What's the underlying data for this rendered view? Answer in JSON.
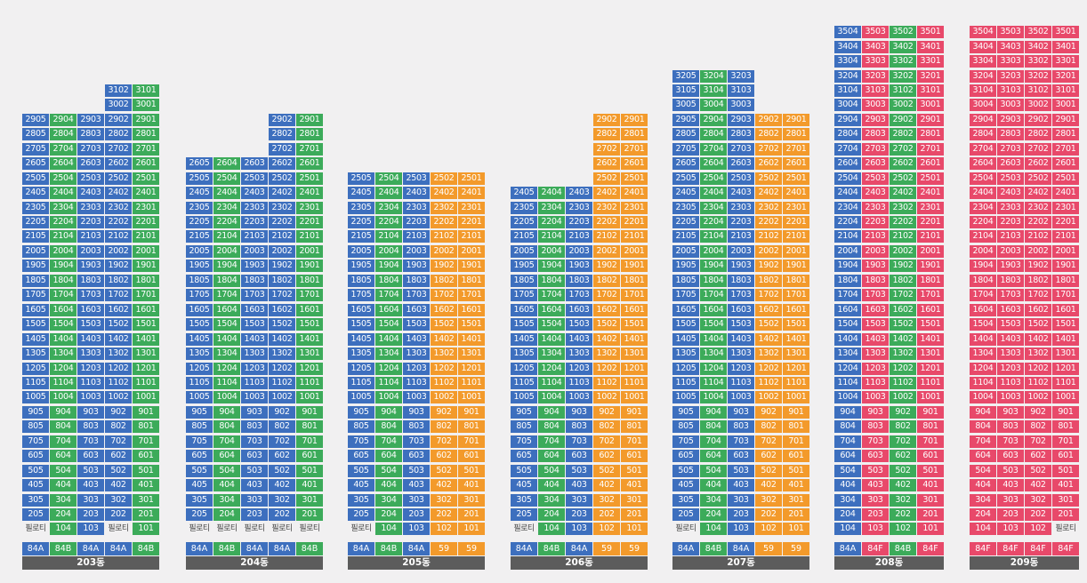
{
  "piloti_label": "필로티",
  "colors": {
    "blue": "#3d6fbe",
    "green": "#3cab5a",
    "orange": "#f39a2b",
    "pink": "#e8496a",
    "label_bar": "#5c5c5c",
    "background": "#f1f0f1"
  },
  "buildings": [
    {
      "label": "203동",
      "top": 31,
      "floors_by_column": [
        29,
        29,
        29,
        31,
        31
      ],
      "colors": [
        "b",
        "g",
        "b",
        "b",
        "g"
      ],
      "ground": [
        [
          "piloti"
        ],
        [
          "104",
          "g"
        ],
        [
          "103",
          "b"
        ],
        [
          "piloti"
        ],
        [
          "101",
          "g"
        ]
      ],
      "types": [
        [
          "84A",
          "b"
        ],
        [
          "84B",
          "g"
        ],
        [
          "84A",
          "b"
        ],
        [
          "84A",
          "b"
        ],
        [
          "84B",
          "g"
        ]
      ]
    },
    {
      "label": "204동",
      "top": 29,
      "floors_by_column": [
        26,
        26,
        26,
        29,
        29
      ],
      "colors": [
        "b",
        "g",
        "b",
        "b",
        "g"
      ],
      "ground": [
        [
          "piloti"
        ],
        [
          "piloti"
        ],
        [
          "piloti"
        ],
        [
          "piloti"
        ],
        [
          "piloti"
        ]
      ],
      "types": [
        [
          "84A",
          "b"
        ],
        [
          "84B",
          "g"
        ],
        [
          "84A",
          "b"
        ],
        [
          "84A",
          "b"
        ],
        [
          "84B",
          "g"
        ]
      ]
    },
    {
      "label": "205동",
      "top": 25,
      "floors_by_column": [
        25,
        25,
        25,
        25,
        25
      ],
      "colors": [
        "b",
        "g",
        "b",
        "o",
        "o"
      ],
      "ground": [
        [
          "piloti"
        ],
        [
          "104",
          "g"
        ],
        [
          "103",
          "b"
        ],
        [
          "102",
          "o"
        ],
        [
          "101",
          "o"
        ]
      ],
      "types": [
        [
          "84A",
          "b"
        ],
        [
          "84B",
          "g"
        ],
        [
          "84A",
          "b"
        ],
        [
          "59",
          "o"
        ],
        [
          "59",
          "o"
        ]
      ]
    },
    {
      "label": "206동",
      "top": 29,
      "floors_by_column": [
        24,
        24,
        24,
        29,
        29
      ],
      "colors": [
        "b",
        "g",
        "b",
        "o",
        "o"
      ],
      "ground": [
        [
          "piloti"
        ],
        [
          "104",
          "g"
        ],
        [
          "103",
          "b"
        ],
        [
          "102",
          "o"
        ],
        [
          "101",
          "o"
        ]
      ],
      "types": [
        [
          "84A",
          "b"
        ],
        [
          "84B",
          "g"
        ],
        [
          "84A",
          "b"
        ],
        [
          "59",
          "o"
        ],
        [
          "59",
          "o"
        ]
      ]
    },
    {
      "label": "207동",
      "top": 32,
      "floors_by_column": [
        32,
        32,
        32,
        29,
        29
      ],
      "colors": [
        "b",
        "g",
        "b",
        "o",
        "o"
      ],
      "ground": [
        [
          "piloti"
        ],
        [
          "104",
          "g"
        ],
        [
          "103",
          "b"
        ],
        [
          "102",
          "o"
        ],
        [
          "101",
          "o"
        ]
      ],
      "types": [
        [
          "84A",
          "b"
        ],
        [
          "84B",
          "g"
        ],
        [
          "84A",
          "b"
        ],
        [
          "59",
          "o"
        ],
        [
          "59",
          "o"
        ]
      ]
    },
    {
      "label": "208동",
      "top": 35,
      "floors_by_column": [
        35,
        35,
        35,
        35
      ],
      "colors": [
        "b",
        "p",
        "g",
        "p"
      ],
      "ground": [
        [
          "104",
          "b"
        ],
        [
          "103",
          "p"
        ],
        [
          "102",
          "g"
        ],
        [
          "101",
          "p"
        ]
      ],
      "types": [
        [
          "84A",
          "b"
        ],
        [
          "84F",
          "p"
        ],
        [
          "84B",
          "g"
        ],
        [
          "84F",
          "p"
        ]
      ]
    },
    {
      "label": "209동",
      "top": 35,
      "floors_by_column": [
        35,
        35,
        35,
        35
      ],
      "colors": [
        "p",
        "p",
        "p",
        "p"
      ],
      "ground": [
        [
          "104",
          "p"
        ],
        [
          "103",
          "p"
        ],
        [
          "102",
          "p"
        ],
        [
          "piloti"
        ]
      ],
      "types": [
        [
          "84F",
          "p"
        ],
        [
          "84F",
          "p"
        ],
        [
          "84F",
          "p"
        ],
        [
          "84F",
          "p"
        ]
      ]
    }
  ]
}
